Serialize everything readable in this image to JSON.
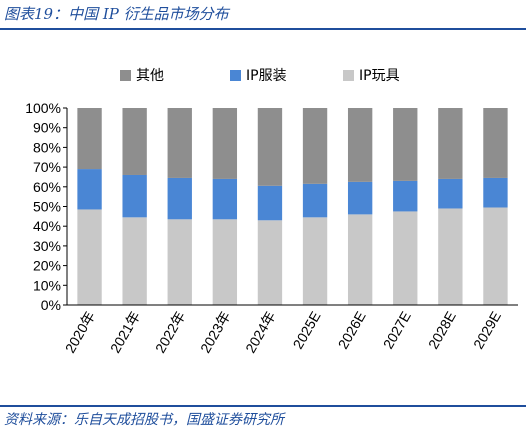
{
  "header": {
    "title": "图表19：中国 IP 衍生品市场分布"
  },
  "footer": {
    "source": "资料来源：乐自天成招股书，国盛证券研究所"
  },
  "chart_data": {
    "type": "bar",
    "stacked": true,
    "categories": [
      "2020年",
      "2021年",
      "2022年",
      "2023年",
      "2024年",
      "2025E",
      "2026E",
      "2027E",
      "2028E",
      "2029E"
    ],
    "series": [
      {
        "name": "IP玩具",
        "color": "#c8c8c8",
        "values": [
          48.5,
          44.5,
          43.5,
          43.5,
          43,
          44.5,
          46,
          47.5,
          49,
          49.5
        ]
      },
      {
        "name": "IP服装",
        "color": "#4a86d4",
        "values": [
          20.5,
          21.5,
          21,
          20.5,
          17.5,
          17,
          16.5,
          15.5,
          15,
          15
        ]
      },
      {
        "name": "其他",
        "color": "#8e8e8e",
        "values": [
          31,
          34,
          35.5,
          36,
          39.5,
          38.5,
          37.5,
          37,
          36,
          35.5
        ]
      }
    ],
    "legend_order": [
      "其他",
      "IP服装",
      "IP玩具"
    ],
    "yticks": [
      "0%",
      "10%",
      "20%",
      "30%",
      "40%",
      "50%",
      "60%",
      "70%",
      "80%",
      "90%",
      "100%"
    ],
    "ylim": [
      0,
      100
    ],
    "legend_position": "top"
  }
}
